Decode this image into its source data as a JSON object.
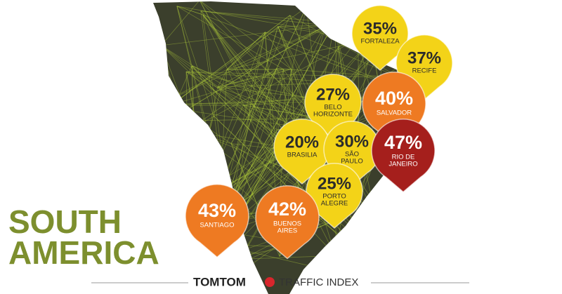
{
  "title": {
    "lines": [
      "SOUTH",
      "AMERICA"
    ],
    "color": "#7d8f2e"
  },
  "pins": [
    {
      "value": "35%",
      "city": [
        "FORTALEZA"
      ],
      "color": "#f3d318",
      "text_color": "#2b2b2b"
    },
    {
      "value": "37%",
      "city": [
        "RECIFE"
      ],
      "color": "#f3d318",
      "text_color": "#2b2b2b"
    },
    {
      "value": "27%",
      "city": [
        "BELO",
        "HORIZONTE"
      ],
      "color": "#f3d318",
      "text_color": "#2b2b2b"
    },
    {
      "value": "40%",
      "city": [
        "SALVADOR"
      ],
      "color": "#ee7a22",
      "text_color": "#ffffff"
    },
    {
      "value": "20%",
      "city": [
        "BRASILIA"
      ],
      "color": "#f3d318",
      "text_color": "#2b2b2b"
    },
    {
      "value": "30%",
      "city": [
        "SÃO",
        "PAULO"
      ],
      "color": "#f3d318",
      "text_color": "#2b2b2b"
    },
    {
      "value": "47%",
      "city": [
        "RIO DE",
        "JANEIRO"
      ],
      "color": "#a51f1c",
      "text_color": "#ffffff"
    },
    {
      "value": "25%",
      "city": [
        "PORTO",
        "ALEGRE"
      ],
      "color": "#f3d318",
      "text_color": "#2b2b2b"
    },
    {
      "value": "43%",
      "city": [
        "SANTIAGO"
      ],
      "color": "#ee7a22",
      "text_color": "#ffffff"
    },
    {
      "value": "42%",
      "city": [
        "BUENOS",
        "AIRES"
      ],
      "color": "#ee7a22",
      "text_color": "#ffffff"
    }
  ],
  "footer": {
    "brand": "TOMTOM",
    "label": "TRAFFIC INDEX"
  }
}
